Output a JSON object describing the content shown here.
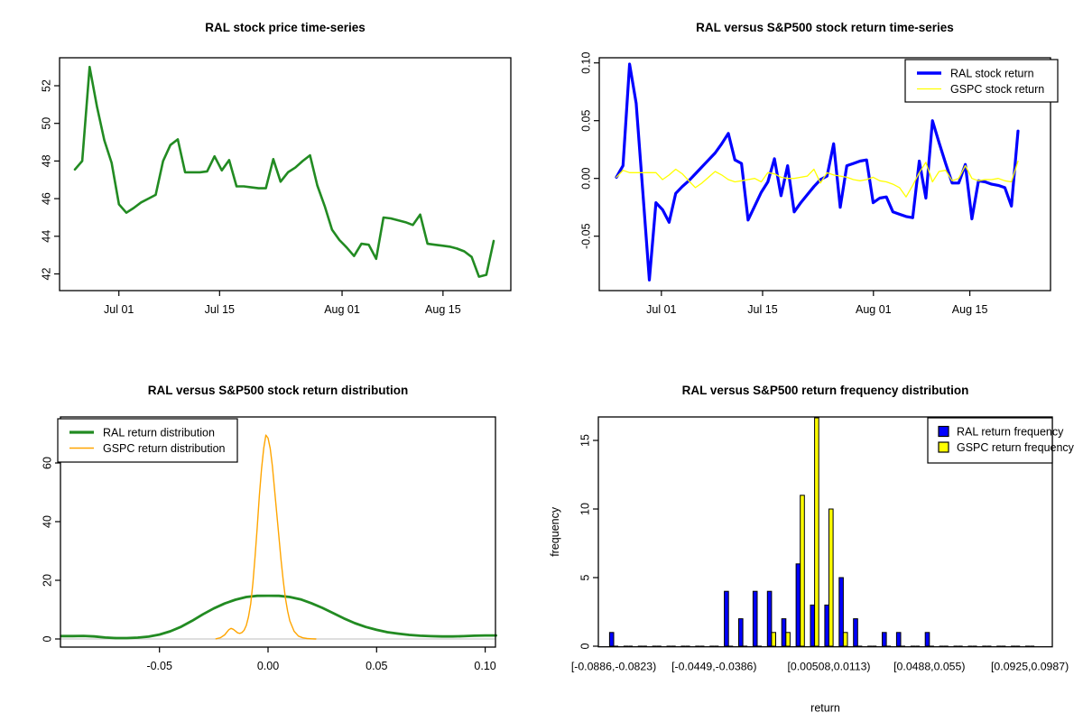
{
  "page": {
    "background": "#ffffff"
  },
  "colors": {
    "ral_green": "#228B22",
    "ral_blue": "#0000FF",
    "gspc_yellow": "#FFFF00",
    "gspc_orange": "#FFA500",
    "zero_line_gray": "#D3D3D3",
    "axis_black": "#000000"
  },
  "chart_data": [
    {
      "type": "line",
      "title": "RAL stock price time-series",
      "xlabel": "",
      "ylabel": "",
      "x_ticks": [
        {
          "label": "Jul 01",
          "f": 0.105
        },
        {
          "label": "Jul 15",
          "f": 0.3455
        },
        {
          "label": "Aug 01",
          "f": 0.638
        },
        {
          "label": "Aug 15",
          "f": 0.879
        }
      ],
      "y_ticks": [
        {
          "v": 42,
          "label": "42"
        },
        {
          "v": 44,
          "label": "44"
        },
        {
          "v": 46,
          "label": "46"
        },
        {
          "v": 48,
          "label": "48"
        },
        {
          "v": 50,
          "label": "50"
        },
        {
          "v": 52,
          "label": "52"
        }
      ],
      "ylim": [
        41.1,
        53.45
      ],
      "grid": false,
      "series": [
        {
          "name": "RAL stock price",
          "color": "#228B22",
          "lwd": 2.6,
          "values": [
            47.55,
            48.0,
            53.0,
            50.9,
            49.1,
            47.9,
            45.7,
            45.25,
            45.5,
            45.8,
            46.0,
            46.2,
            48.0,
            48.85,
            49.15,
            47.4,
            47.4,
            47.4,
            47.45,
            48.25,
            47.5,
            48.05,
            46.65,
            46.65,
            46.6,
            46.55,
            46.55,
            48.1,
            46.9,
            47.4,
            47.65,
            48.0,
            48.3,
            46.7,
            45.6,
            44.35,
            43.8,
            43.4,
            42.95,
            43.6,
            43.55,
            42.8,
            45.0,
            44.95,
            44.85,
            44.75,
            44.6,
            45.15,
            43.6,
            43.55,
            43.5,
            43.45,
            43.35,
            43.2,
            42.9,
            41.85,
            41.95,
            43.75
          ]
        }
      ]
    },
    {
      "type": "line",
      "title": "RAL versus S&P500 stock return time-series",
      "xlabel": "",
      "ylabel": "",
      "x_ticks": [
        {
          "label": "Jul 01",
          "f": 0.112
        },
        {
          "label": "Jul 15",
          "f": 0.364
        },
        {
          "label": "Aug 01",
          "f": 0.64
        },
        {
          "label": "Aug 15",
          "f": 0.88
        }
      ],
      "y_ticks": [
        {
          "v": -0.05,
          "label": "-0.05"
        },
        {
          "v": 0.0,
          "label": "0.00"
        },
        {
          "v": 0.05,
          "label": "0.05"
        },
        {
          "v": 0.1,
          "label": "0.10"
        }
      ],
      "ylim": [
        -0.097,
        0.104
      ],
      "grid": false,
      "legend": {
        "position": "topright",
        "entries": [
          {
            "label": "RAL stock return",
            "color": "#0000FF",
            "lwd": 3.5,
            "key": "line"
          },
          {
            "label": "GSPC stock return",
            "color": "#FFFF00",
            "lwd": 1.3,
            "key": "line"
          }
        ]
      },
      "series": [
        {
          "name": "RAL stock return",
          "color": "#0000FF",
          "lwd": 3.2,
          "values": [
            0.001,
            0.011,
            0.099,
            0.065,
            -0.011,
            -0.088,
            -0.021,
            -0.027,
            -0.038,
            -0.013,
            -0.007,
            -0.002,
            0.004,
            0.01,
            0.016,
            0.022,
            0.03,
            0.039,
            0.016,
            0.013,
            -0.036,
            -0.024,
            -0.012,
            -0.003,
            0.017,
            -0.015,
            0.011,
            -0.029,
            -0.021,
            -0.014,
            -0.007,
            -0.001,
            0.002,
            0.03,
            -0.025,
            0.011,
            0.013,
            0.015,
            0.016,
            -0.021,
            -0.017,
            -0.016,
            -0.029,
            -0.031,
            -0.033,
            -0.034,
            0.015,
            -0.017,
            0.05,
            0.031,
            0.013,
            -0.004,
            -0.004,
            0.012,
            -0.035,
            -0.002,
            -0.003,
            -0.005,
            -0.006,
            -0.008,
            -0.024,
            0.041
          ]
        },
        {
          "name": "GSPC stock return",
          "color": "#FFFF00",
          "lwd": 1.3,
          "values": [
            0.001,
            0.007,
            0.005,
            0.005,
            0.005,
            0.005,
            0.005,
            -0.001,
            0.003,
            0.008,
            0.004,
            -0.002,
            -0.008,
            -0.004,
            0.001,
            0.006,
            0.003,
            -0.001,
            -0.003,
            -0.002,
            -0.001,
            0.0,
            -0.003,
            0.005,
            0.004,
            0.001,
            0.0,
            0.0,
            0.001,
            0.002,
            0.008,
            -0.004,
            0.005,
            0.003,
            0.002,
            0.001,
            -0.001,
            -0.002,
            -0.001,
            0.001,
            -0.002,
            -0.003,
            -0.005,
            -0.008,
            -0.016,
            -0.006,
            0.005,
            0.014,
            -0.003,
            0.006,
            0.007,
            -0.002,
            0.0,
            0.011,
            0.0,
            -0.002,
            -0.001,
            -0.001,
            0.0,
            -0.002,
            -0.003,
            0.015
          ]
        }
      ]
    },
    {
      "type": "density",
      "title": "RAL versus S&P500 stock return distribution",
      "xlabel": "",
      "ylabel": "",
      "xlim": [
        -0.0953,
        0.105
      ],
      "ylim": [
        0,
        75.5
      ],
      "x_ticks": [
        {
          "v": -0.05,
          "label": "-0.05"
        },
        {
          "v": 0.0,
          "label": "0.00"
        },
        {
          "v": 0.05,
          "label": "0.05"
        },
        {
          "v": 0.1,
          "label": "0.10"
        }
      ],
      "y_ticks": [
        {
          "v": 0,
          "label": "0"
        },
        {
          "v": 20,
          "label": "20"
        },
        {
          "v": 40,
          "label": "40"
        },
        {
          "v": 60,
          "label": "60"
        }
      ],
      "zero_line": {
        "show": true,
        "color": "#D3D3D3"
      },
      "legend": {
        "position": "topleft",
        "entries": [
          {
            "label": "RAL return distribution",
            "color": "#228B22",
            "lwd": 3.2,
            "key": "line"
          },
          {
            "label": "GSPC return distribution",
            "color": "#FFA500",
            "lwd": 1.4,
            "key": "line"
          }
        ]
      },
      "series": [
        {
          "name": "RAL return distribution",
          "color": "#228B22",
          "lwd": 2.8,
          "points": [
            [
              -0.0953,
              1.0
            ],
            [
              -0.09,
              1.0
            ],
            [
              -0.085,
              1.05
            ],
            [
              -0.08,
              0.85
            ],
            [
              -0.075,
              0.5
            ],
            [
              -0.07,
              0.32
            ],
            [
              -0.065,
              0.3
            ],
            [
              -0.06,
              0.45
            ],
            [
              -0.055,
              0.8
            ],
            [
              -0.05,
              1.5
            ],
            [
              -0.045,
              2.6
            ],
            [
              -0.04,
              4.2
            ],
            [
              -0.035,
              6.2
            ],
            [
              -0.03,
              8.4
            ],
            [
              -0.025,
              10.4
            ],
            [
              -0.02,
              12.1
            ],
            [
              -0.015,
              13.4
            ],
            [
              -0.01,
              14.3
            ],
            [
              -0.005,
              14.7
            ],
            [
              0,
              14.75
            ],
            [
              0.005,
              14.7
            ],
            [
              0.01,
              14.3
            ],
            [
              0.015,
              13.5
            ],
            [
              0.02,
              12.2
            ],
            [
              0.025,
              10.6
            ],
            [
              0.03,
              8.8
            ],
            [
              0.035,
              7.0
            ],
            [
              0.04,
              5.4
            ],
            [
              0.045,
              4.1
            ],
            [
              0.05,
              3.1
            ],
            [
              0.055,
              2.3
            ],
            [
              0.06,
              1.8
            ],
            [
              0.065,
              1.4
            ],
            [
              0.07,
              1.1
            ],
            [
              0.075,
              0.95
            ],
            [
              0.08,
              0.85
            ],
            [
              0.085,
              0.85
            ],
            [
              0.09,
              0.95
            ],
            [
              0.095,
              1.1
            ],
            [
              0.1,
              1.2
            ],
            [
              0.105,
              1.2
            ]
          ]
        },
        {
          "name": "GSPC return distribution",
          "color": "#FFA500",
          "lwd": 1.4,
          "points": [
            [
              -0.024,
              0.05
            ],
            [
              -0.022,
              0.4
            ],
            [
              -0.02,
              1.4
            ],
            [
              -0.018,
              3.2
            ],
            [
              -0.017,
              3.6
            ],
            [
              -0.016,
              3.3
            ],
            [
              -0.015,
              2.7
            ],
            [
              -0.014,
              2.1
            ],
            [
              -0.013,
              1.9
            ],
            [
              -0.012,
              2.2
            ],
            [
              -0.011,
              3.0
            ],
            [
              -0.01,
              4.6
            ],
            [
              -0.009,
              7.5
            ],
            [
              -0.008,
              12
            ],
            [
              -0.007,
              19
            ],
            [
              -0.006,
              28
            ],
            [
              -0.005,
              38
            ],
            [
              -0.004,
              49
            ],
            [
              -0.003,
              58
            ],
            [
              -0.002,
              65
            ],
            [
              -0.001,
              69.5
            ],
            [
              0.0,
              68.5
            ],
            [
              0.001,
              65
            ],
            [
              0.002,
              59
            ],
            [
              0.003,
              51
            ],
            [
              0.004,
              43
            ],
            [
              0.005,
              35
            ],
            [
              0.006,
              27
            ],
            [
              0.007,
              20
            ],
            [
              0.008,
              14
            ],
            [
              0.009,
              9.5
            ],
            [
              0.01,
              6.2
            ],
            [
              0.012,
              2.6
            ],
            [
              0.014,
              1.0
            ],
            [
              0.016,
              0.4
            ],
            [
              0.018,
              0.15
            ],
            [
              0.02,
              0.05
            ],
            [
              0.022,
              0.0
            ]
          ]
        }
      ]
    },
    {
      "type": "grouped_bar",
      "title": "RAL versus S&P500 return frequency distribution",
      "xlabel": "return",
      "ylabel": "frequency",
      "n_bins": 30,
      "bin_labels": [
        {
          "label": "[-0.0886,-0.0823)",
          "bin": 1
        },
        {
          "label": "[-0.0449,-0.0386)",
          "bin": 8
        },
        {
          "label": "[0.00508,0.0113)",
          "bin": 16
        },
        {
          "label": "[0.0488,0.055)",
          "bin": 23
        },
        {
          "label": "[0.0925,0.0987)",
          "bin": 30
        }
      ],
      "y_ticks": [
        {
          "v": 0,
          "label": "0"
        },
        {
          "v": 5,
          "label": "5"
        },
        {
          "v": 10,
          "label": "10"
        },
        {
          "v": 15,
          "label": "15"
        }
      ],
      "ylim": [
        0,
        16.6
      ],
      "legend": {
        "position": "topright",
        "entries": [
          {
            "label": "RAL return frequency",
            "color": "#0000FF",
            "key": "box"
          },
          {
            "label": "GSPC return frequency",
            "color": "#FFFF00",
            "key": "box"
          }
        ]
      },
      "series": [
        {
          "name": "RAL return frequency",
          "color": "#0000FF",
          "values": [
            1,
            0,
            0,
            0,
            0,
            0,
            0,
            0,
            4,
            2,
            4,
            4,
            2,
            6,
            3,
            3,
            5,
            2,
            0,
            1,
            1,
            0,
            1,
            0,
            0,
            0,
            0,
            0,
            0,
            0
          ]
        },
        {
          "name": "GSPC return frequency",
          "color": "#FFFF00",
          "values": [
            0,
            0,
            0,
            0,
            0,
            0,
            0,
            0,
            0,
            0,
            0,
            1,
            1,
            11,
            17,
            10,
            1,
            0,
            0,
            0,
            0,
            0,
            0,
            0,
            0,
            0,
            0,
            0,
            0,
            0
          ]
        }
      ]
    }
  ]
}
